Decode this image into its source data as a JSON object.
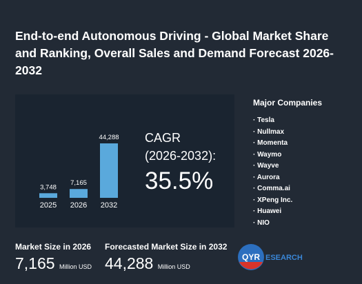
{
  "header": {
    "title": "End-to-end Autonomous Driving - Global Market Share and Ranking, Overall Sales and Demand Forecast 2026-2032"
  },
  "chart_data": {
    "type": "bar",
    "categories": [
      "2025",
      "2026",
      "2032"
    ],
    "values": [
      3748,
      7165,
      44288
    ],
    "value_labels": [
      "3,748",
      "7,165",
      "44,288"
    ],
    "color": "#5aa9dc"
  },
  "cagr": {
    "label_line1": "CAGR",
    "label_line2": "(2026-2032):",
    "value": "35.5%"
  },
  "companies": {
    "title": "Major Companies",
    "items": [
      "Tesla",
      "Nullmax",
      "Momenta",
      "Waymo",
      "Wayve",
      "Aurora",
      "Comma.ai",
      "XPeng Inc.",
      "Huawei",
      "NIO"
    ]
  },
  "stats": [
    {
      "label": "Market Size in 2026",
      "value": "7,165",
      "unit": "Million USD"
    },
    {
      "label": "Forecasted Market Size in 2032",
      "value": "44,288",
      "unit": "Million USD"
    }
  ],
  "logo": {
    "mark": "QYR",
    "rest": "ESEARCH"
  }
}
